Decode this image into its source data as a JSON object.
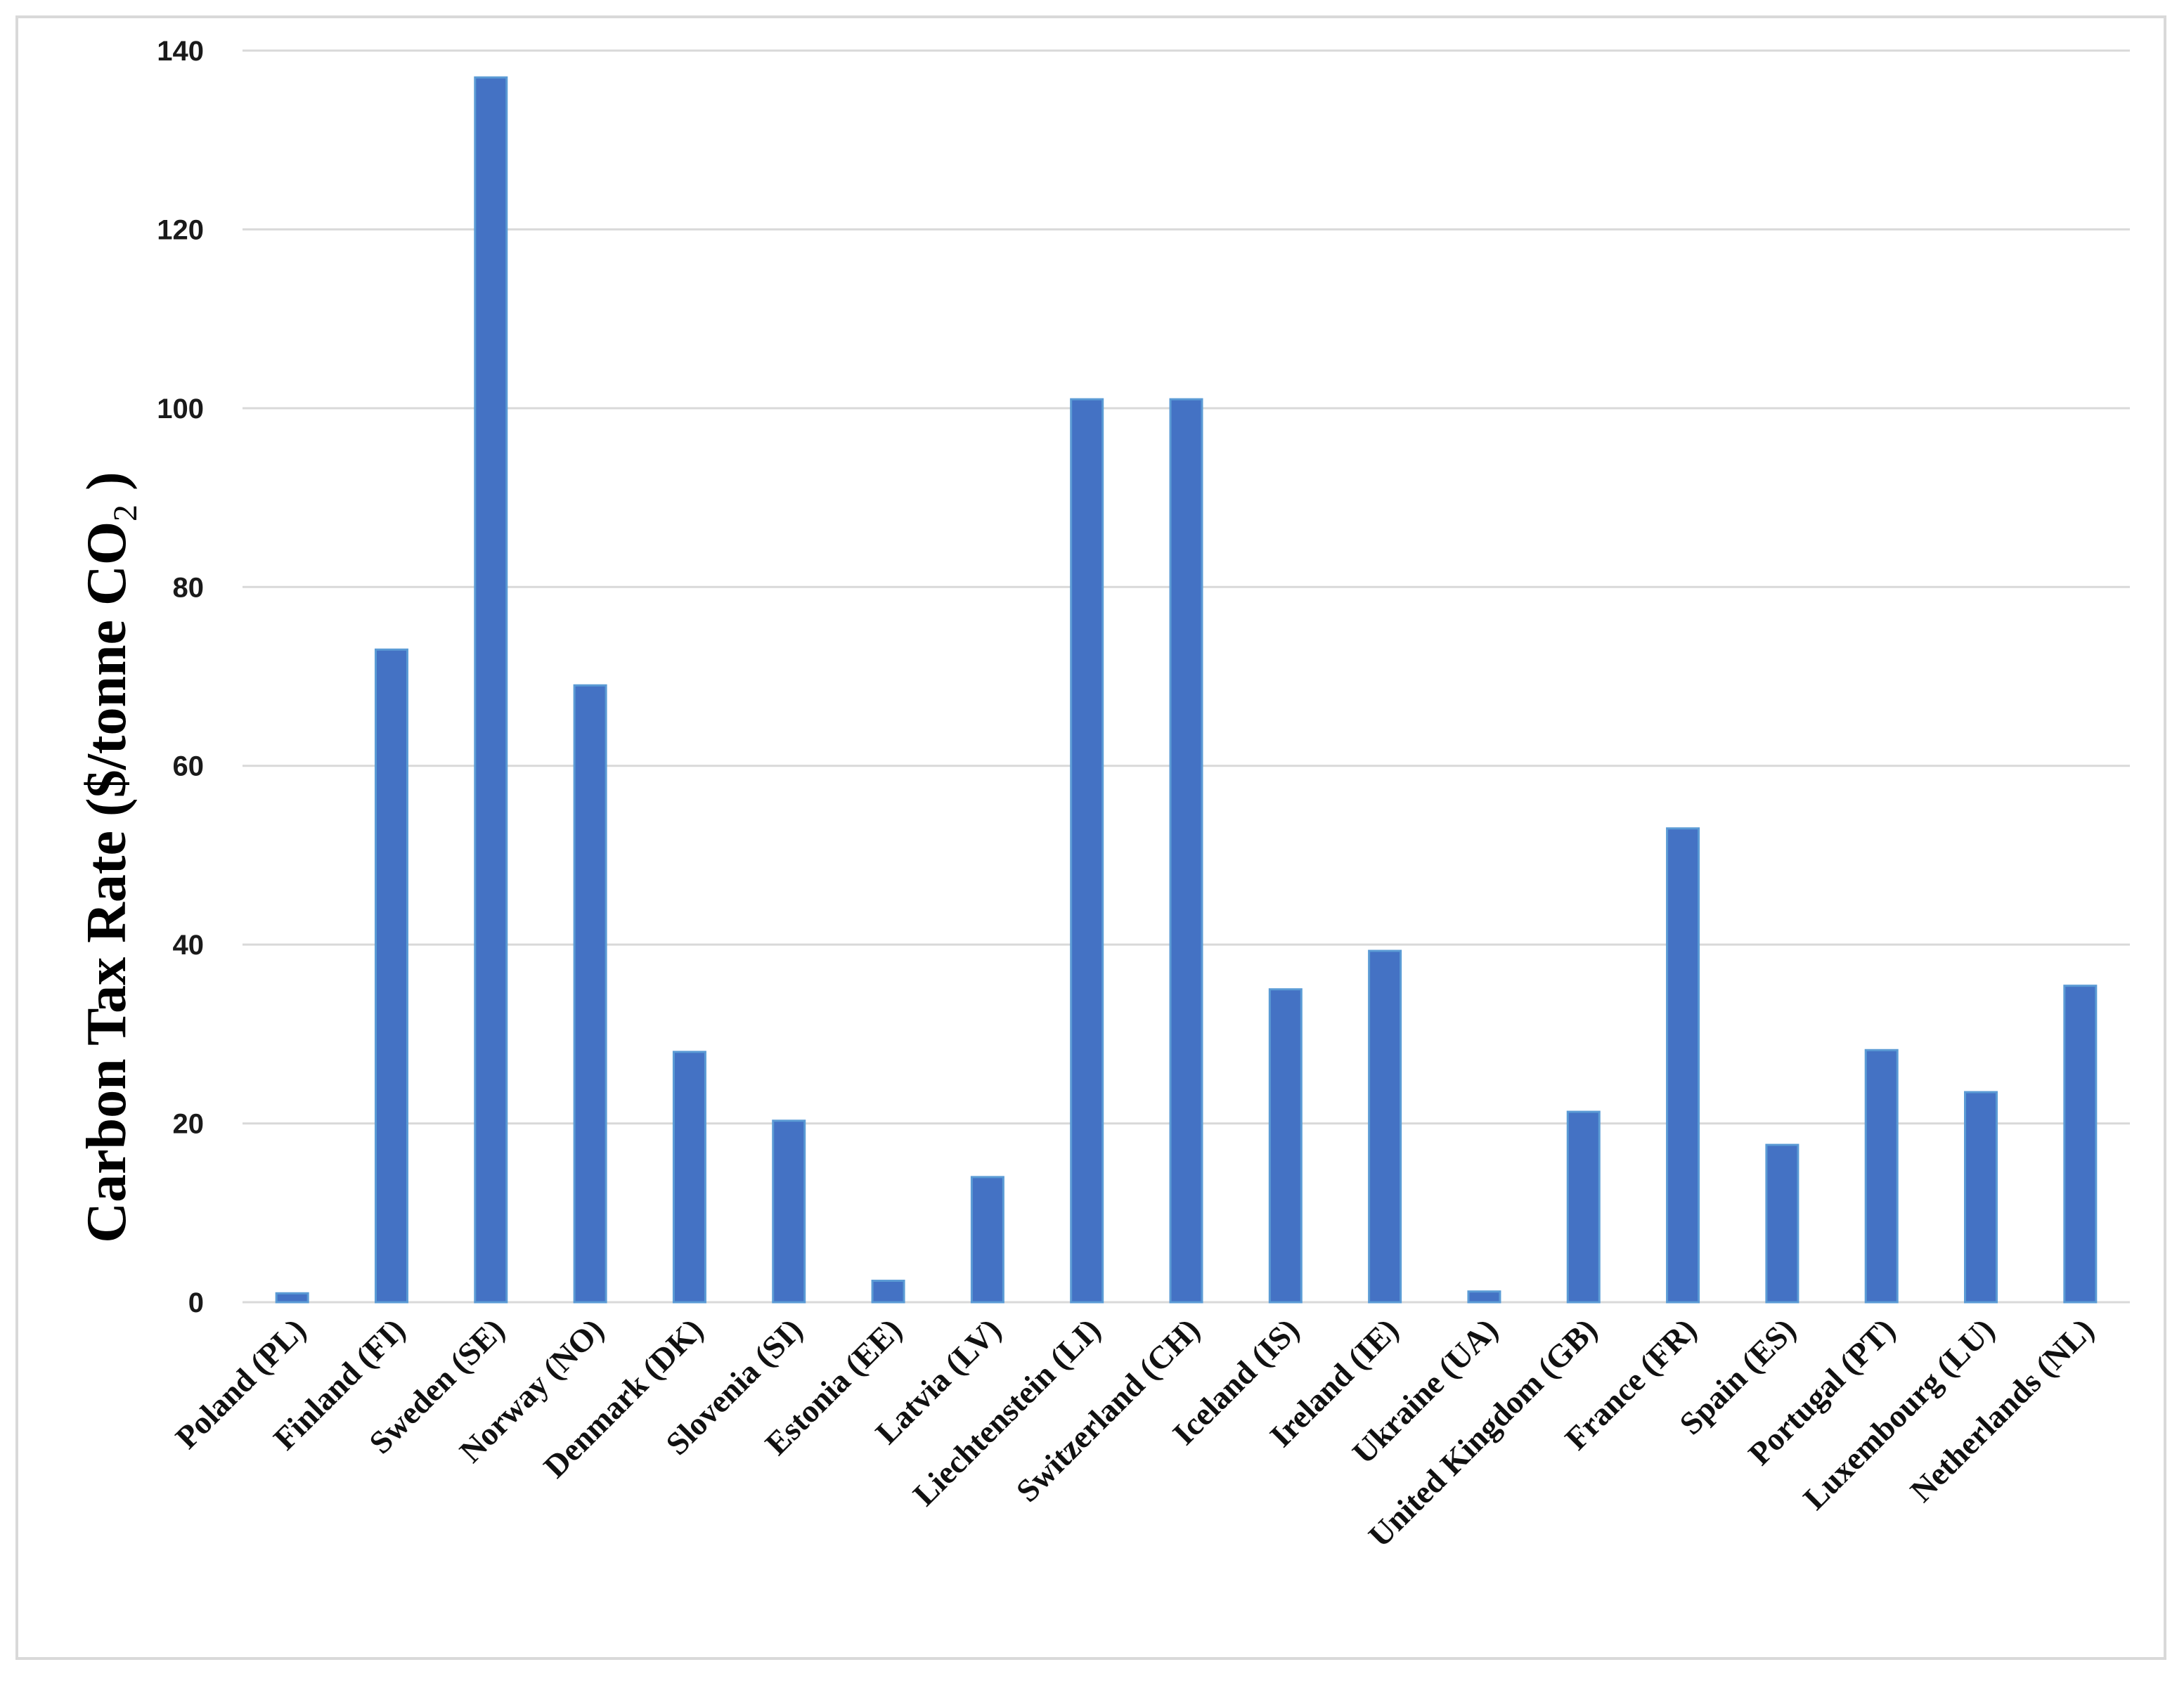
{
  "chart_data": {
    "type": "bar",
    "categories": [
      "Poland (PL)",
      "Finland (FI)",
      "Sweden (SE)",
      "Norway (NO)",
      "Denmark (DK)",
      "Slovenia (SI)",
      "Estonia (EE)",
      "Latvia (LV)",
      "Liechtenstein (LI)",
      "Switzerland (CH)",
      "Iceland (IS)",
      "Ireland (IE)",
      "Ukraine (UA)",
      "United Kingdom (GB)",
      "France (FR)",
      "Spain (ES)",
      "Portugal (PT)",
      "Luxembourg (LU)",
      "Netherlands (NL)"
    ],
    "values": [
      1.0,
      73.0,
      137.0,
      69.0,
      28.0,
      20.3,
      2.4,
      14.0,
      101.0,
      101.0,
      35.0,
      39.3,
      1.2,
      21.3,
      53.0,
      17.6,
      28.2,
      23.5,
      35.4
    ],
    "title": "",
    "ylabel": {
      "main": "Carbon Tax Rate ($/tonne CO",
      "subscript": "2",
      "close": " )"
    },
    "xlabel": "",
    "ylim": [
      0,
      140
    ],
    "yticks": [
      0,
      20,
      40,
      60,
      80,
      100,
      120,
      140
    ],
    "grid": true,
    "legend": "none",
    "bar_color": "#4472c4",
    "bar_edge_color": "#5b9bd5",
    "grid_color": "#d9d9d9"
  }
}
